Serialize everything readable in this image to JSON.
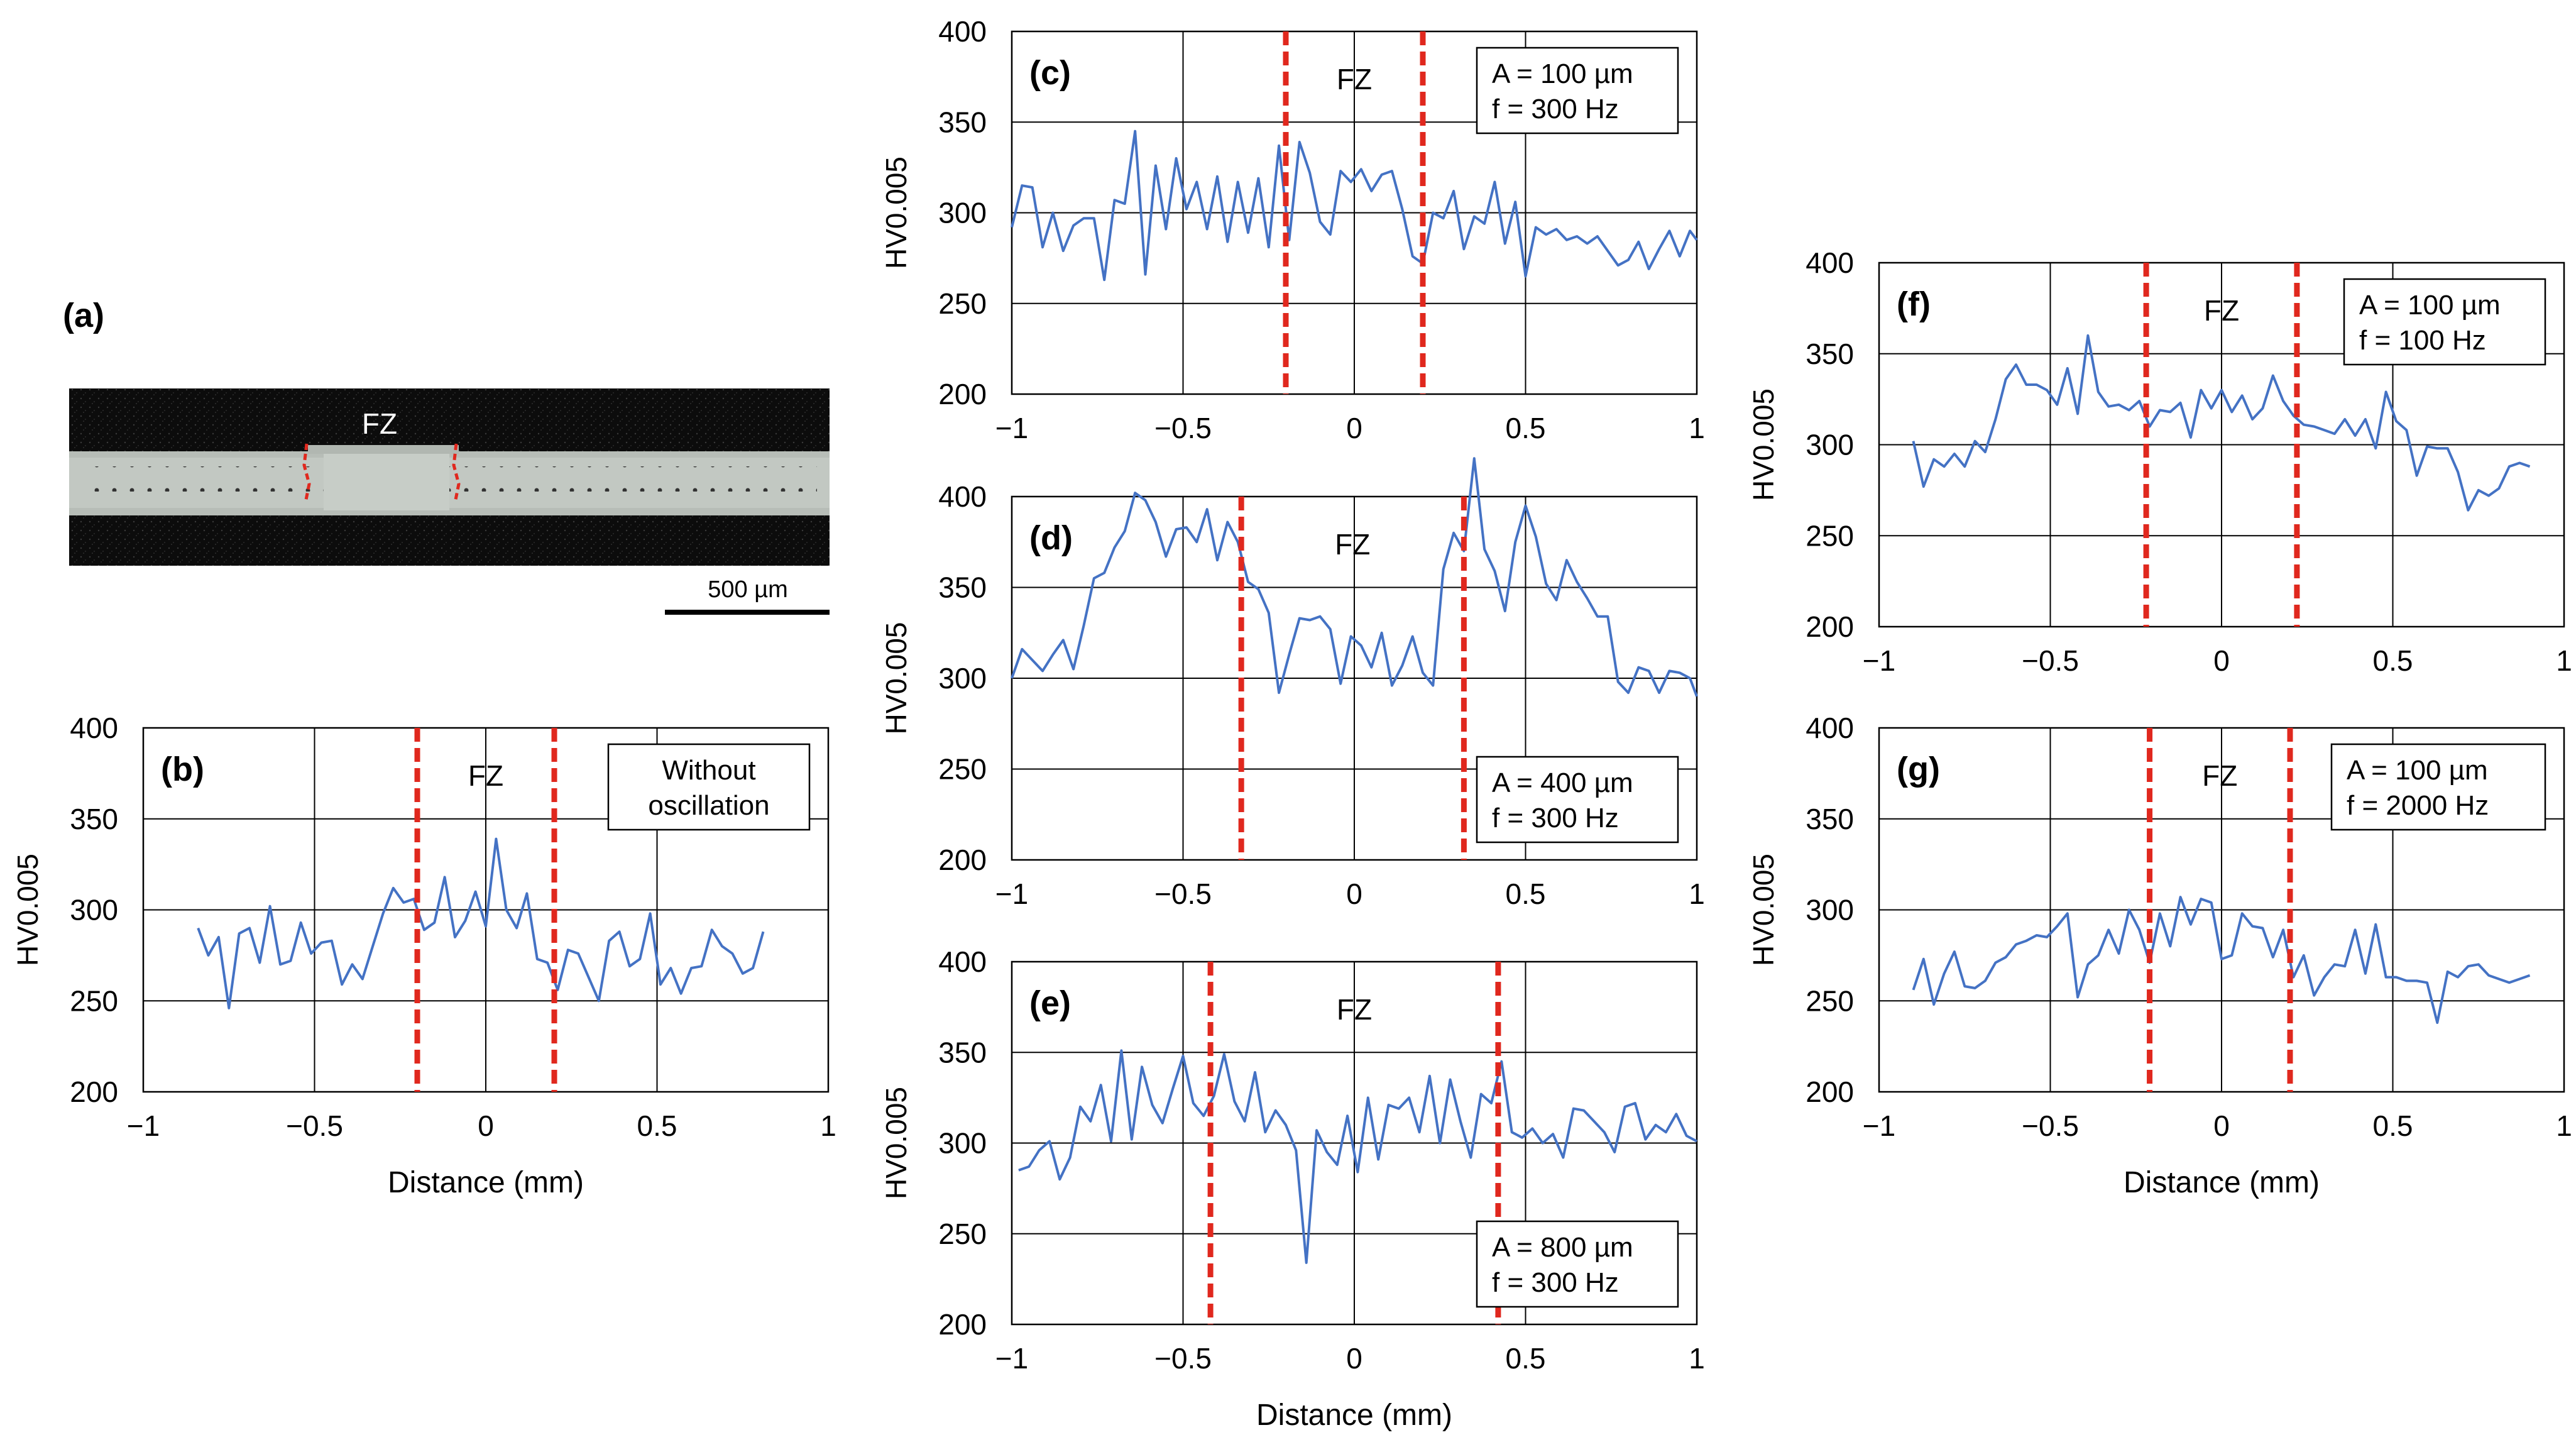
{
  "panel_a": {
    "label": "(a)",
    "fz_label": "FZ",
    "scale_bar_label": "500 µm"
  },
  "chart_data": [
    {
      "id": "b",
      "type": "line",
      "panel_label": "(b)",
      "zone_label": "FZ",
      "annotation": [
        "Without",
        "oscillation"
      ],
      "xlabel": "Distance (mm)",
      "ylabel": "HV0.005",
      "xlim": [
        -1,
        1
      ],
      "ylim": [
        200,
        400
      ],
      "xticks": [
        -1,
        -0.5,
        0,
        0.5,
        1
      ],
      "xtick_labels": [
        "−1",
        "−0.5",
        "0",
        "0.5",
        "1"
      ],
      "yticks": [
        200,
        250,
        300,
        350,
        400
      ],
      "fz_bounds": [
        -0.2,
        0.2
      ],
      "grid": true,
      "colors": {
        "series": "#4472c4",
        "fz": "#e0281e"
      },
      "x": [
        -0.84,
        -0.81,
        -0.78,
        -0.75,
        -0.72,
        -0.69,
        -0.66,
        -0.63,
        -0.6,
        -0.57,
        -0.54,
        -0.51,
        -0.48,
        -0.45,
        -0.42,
        -0.39,
        -0.36,
        -0.33,
        -0.3,
        -0.27,
        -0.24,
        -0.21,
        -0.18,
        -0.15,
        -0.12,
        -0.09,
        -0.06,
        -0.03,
        0.0,
        0.03,
        0.06,
        0.09,
        0.12,
        0.15,
        0.18,
        0.21,
        0.24,
        0.27,
        0.3,
        0.33,
        0.36,
        0.39,
        0.42,
        0.45,
        0.48,
        0.51,
        0.54,
        0.57,
        0.6,
        0.63,
        0.66,
        0.69,
        0.72,
        0.75,
        0.78,
        0.81
      ],
      "values": [
        290,
        275,
        285,
        246,
        287,
        290,
        271,
        302,
        270,
        272,
        293,
        276,
        282,
        283,
        259,
        270,
        262,
        280,
        298,
        312,
        304,
        306,
        289,
        293,
        318,
        285,
        294,
        310,
        291,
        339,
        300,
        290,
        309,
        273,
        271,
        256,
        278,
        276,
        263,
        250,
        283,
        288,
        269,
        273,
        298,
        259,
        268,
        254,
        268,
        269,
        289,
        280,
        276,
        265,
        268,
        288
      ]
    },
    {
      "id": "c",
      "type": "line",
      "panel_label": "(c)",
      "zone_label": "FZ",
      "annotation": [
        "A = 100 µm",
        "f = 300 Hz"
      ],
      "xlabel": "",
      "ylabel": "HV0.005",
      "xlim": [
        -1,
        1
      ],
      "ylim": [
        200,
        400
      ],
      "xticks": [
        -1,
        -0.5,
        0,
        0.5,
        1
      ],
      "xtick_labels": [
        "−1",
        "−0.5",
        "0",
        "0.5",
        "1"
      ],
      "yticks": [
        200,
        250,
        300,
        350,
        400
      ],
      "fz_bounds": [
        -0.2,
        0.2
      ],
      "grid": true,
      "colors": {
        "series": "#4472c4",
        "fz": "#e0281e"
      },
      "x": [
        -1.0,
        -0.97,
        -0.94,
        -0.91,
        -0.88,
        -0.85,
        -0.82,
        -0.79,
        -0.76,
        -0.73,
        -0.7,
        -0.67,
        -0.64,
        -0.61,
        -0.58,
        -0.55,
        -0.52,
        -0.49,
        -0.46,
        -0.43,
        -0.4,
        -0.37,
        -0.34,
        -0.31,
        -0.28,
        -0.25,
        -0.22,
        -0.19,
        -0.16,
        -0.13,
        -0.1,
        -0.07,
        -0.04,
        -0.01,
        0.02,
        0.05,
        0.08,
        0.11,
        0.14,
        0.17,
        0.2,
        0.23,
        0.26,
        0.29,
        0.32,
        0.35,
        0.38,
        0.41,
        0.44,
        0.47,
        0.5,
        0.53,
        0.56,
        0.59,
        0.62,
        0.65,
        0.68,
        0.71,
        0.74,
        0.77,
        0.8,
        0.83,
        0.86,
        0.89,
        0.92,
        0.95,
        0.98,
        1.0
      ],
      "values": [
        292,
        315,
        314,
        281,
        300,
        279,
        293,
        297,
        297,
        263,
        307,
        305,
        345,
        266,
        326,
        291,
        330,
        302,
        317,
        291,
        320,
        284,
        317,
        289,
        319,
        281,
        337,
        285,
        339,
        322,
        295,
        288,
        323,
        317,
        324,
        312,
        321,
        323,
        302,
        276,
        272,
        300,
        297,
        312,
        280,
        298,
        294,
        317,
        283,
        306,
        265,
        292,
        288,
        291,
        285,
        287,
        283,
        287,
        279,
        271,
        274,
        284,
        269,
        280,
        290,
        276,
        290,
        285
      ]
    },
    {
      "id": "d",
      "type": "line",
      "panel_label": "(d)",
      "zone_label": "FZ",
      "annotation": [
        "A = 400 µm",
        "f = 300 Hz"
      ],
      "xlabel": "",
      "ylabel": "HV0.005",
      "xlim": [
        -1,
        1
      ],
      "ylim": [
        200,
        400
      ],
      "xticks": [
        -1,
        -0.5,
        0,
        0.5,
        1
      ],
      "xtick_labels": [
        "−1",
        "−0.5",
        "0",
        "0.5",
        "1"
      ],
      "yticks": [
        200,
        250,
        300,
        350,
        400
      ],
      "fz_bounds": [
        -0.33,
        0.32
      ],
      "grid": true,
      "colors": {
        "series": "#4472c4",
        "fz": "#e0281e"
      },
      "x": [
        -1.0,
        -0.97,
        -0.94,
        -0.91,
        -0.88,
        -0.85,
        -0.82,
        -0.79,
        -0.76,
        -0.73,
        -0.7,
        -0.67,
        -0.64,
        -0.61,
        -0.58,
        -0.55,
        -0.52,
        -0.49,
        -0.46,
        -0.43,
        -0.4,
        -0.37,
        -0.34,
        -0.31,
        -0.28,
        -0.25,
        -0.22,
        -0.19,
        -0.16,
        -0.13,
        -0.1,
        -0.07,
        -0.04,
        -0.01,
        0.02,
        0.05,
        0.08,
        0.11,
        0.14,
        0.17,
        0.2,
        0.23,
        0.26,
        0.29,
        0.32,
        0.35,
        0.38,
        0.41,
        0.44,
        0.47,
        0.5,
        0.53,
        0.56,
        0.59,
        0.62,
        0.65,
        0.68,
        0.71,
        0.74,
        0.77,
        0.8,
        0.83,
        0.86,
        0.89,
        0.92,
        0.95,
        0.98,
        1.0
      ],
      "values": [
        300,
        316,
        310,
        304,
        313,
        321,
        305,
        329,
        355,
        358,
        372,
        381,
        402,
        398,
        386,
        367,
        382,
        383,
        375,
        393,
        365,
        386,
        375,
        353,
        349,
        336,
        292,
        313,
        333,
        332,
        334,
        327,
        297,
        323,
        318,
        306,
        325,
        296,
        307,
        323,
        303,
        296,
        360,
        380,
        370,
        421,
        371,
        359,
        337,
        375,
        395,
        378,
        352,
        343,
        365,
        353,
        344,
        334,
        334,
        298,
        292,
        306,
        304,
        292,
        304,
        303,
        300,
        290
      ]
    },
    {
      "id": "e",
      "type": "line",
      "panel_label": "(e)",
      "zone_label": "FZ",
      "annotation": [
        "A = 800 µm",
        "f = 300 Hz"
      ],
      "xlabel": "Distance (mm)",
      "ylabel": "HV0.005",
      "xlim": [
        -1,
        1
      ],
      "ylim": [
        200,
        400
      ],
      "xticks": [
        -1,
        -0.5,
        0,
        0.5,
        1
      ],
      "xtick_labels": [
        "−1",
        "−0.5",
        "0",
        "0.5",
        "1"
      ],
      "yticks": [
        200,
        250,
        300,
        350,
        400
      ],
      "fz_bounds": [
        -0.42,
        0.42
      ],
      "grid": true,
      "colors": {
        "series": "#4472c4",
        "fz": "#e0281e"
      },
      "x": [
        -0.98,
        -0.95,
        -0.92,
        -0.89,
        -0.86,
        -0.83,
        -0.8,
        -0.77,
        -0.74,
        -0.71,
        -0.68,
        -0.65,
        -0.62,
        -0.59,
        -0.56,
        -0.53,
        -0.5,
        -0.47,
        -0.44,
        -0.41,
        -0.38,
        -0.35,
        -0.32,
        -0.29,
        -0.26,
        -0.23,
        -0.2,
        -0.17,
        -0.14,
        -0.11,
        -0.08,
        -0.05,
        -0.02,
        0.01,
        0.04,
        0.07,
        0.1,
        0.13,
        0.16,
        0.19,
        0.22,
        0.25,
        0.28,
        0.31,
        0.34,
        0.37,
        0.4,
        0.43,
        0.46,
        0.49,
        0.52,
        0.55,
        0.58,
        0.61,
        0.64,
        0.67,
        0.7,
        0.73,
        0.76,
        0.79,
        0.82,
        0.85,
        0.88,
        0.91,
        0.94,
        0.97,
        1.0
      ],
      "values": [
        285,
        287,
        296,
        301,
        280,
        292,
        320,
        312,
        332,
        301,
        351,
        302,
        342,
        321,
        311,
        330,
        348,
        322,
        315,
        326,
        349,
        323,
        312,
        339,
        306,
        318,
        310,
        296,
        234,
        307,
        295,
        288,
        315,
        284,
        325,
        291,
        321,
        319,
        325,
        306,
        337,
        300,
        335,
        312,
        292,
        327,
        322,
        345,
        306,
        303,
        308,
        300,
        305,
        292,
        319,
        318,
        312,
        306,
        295,
        320,
        322,
        302,
        310,
        306,
        316,
        304,
        301
      ]
    },
    {
      "id": "f",
      "type": "line",
      "panel_label": "(f)",
      "zone_label": "FZ",
      "annotation": [
        "A = 100 µm",
        "f = 100 Hz"
      ],
      "xlabel": "",
      "ylabel": "HV0.005",
      "xlim": [
        -1,
        1
      ],
      "ylim": [
        200,
        400
      ],
      "xticks": [
        -1,
        -0.5,
        0,
        0.5,
        1
      ],
      "xtick_labels": [
        "−1",
        "−0.5",
        "0",
        "0.5",
        "1"
      ],
      "yticks": [
        200,
        250,
        300,
        350,
        400
      ],
      "fz_bounds": [
        -0.22,
        0.22
      ],
      "grid": true,
      "colors": {
        "series": "#4472c4",
        "fz": "#e0281e"
      },
      "x": [
        -0.9,
        -0.87,
        -0.84,
        -0.81,
        -0.78,
        -0.75,
        -0.72,
        -0.69,
        -0.66,
        -0.63,
        -0.6,
        -0.57,
        -0.54,
        -0.51,
        -0.48,
        -0.45,
        -0.42,
        -0.39,
        -0.36,
        -0.33,
        -0.3,
        -0.27,
        -0.24,
        -0.21,
        -0.18,
        -0.15,
        -0.12,
        -0.09,
        -0.06,
        -0.03,
        0.0,
        0.03,
        0.06,
        0.09,
        0.12,
        0.15,
        0.18,
        0.21,
        0.24,
        0.27,
        0.3,
        0.33,
        0.36,
        0.39,
        0.42,
        0.45,
        0.48,
        0.51,
        0.54,
        0.57,
        0.6,
        0.63,
        0.66,
        0.69,
        0.72,
        0.75,
        0.78,
        0.81,
        0.84,
        0.87,
        0.9
      ],
      "values": [
        302,
        277,
        292,
        288,
        295,
        288,
        302,
        296,
        314,
        336,
        344,
        333,
        333,
        330,
        322,
        342,
        317,
        360,
        329,
        321,
        322,
        319,
        324,
        310,
        319,
        318,
        323,
        304,
        330,
        320,
        330,
        318,
        327,
        314,
        320,
        338,
        324,
        316,
        311,
        310,
        308,
        306,
        314,
        305,
        314,
        298,
        329,
        313,
        308,
        283,
        299,
        298,
        298,
        285,
        264,
        275,
        272,
        276,
        288,
        290,
        288
      ]
    },
    {
      "id": "g",
      "type": "line",
      "panel_label": "(g)",
      "zone_label": "FZ",
      "annotation": [
        "A = 100 µm",
        "f = 2000 Hz"
      ],
      "xlabel": "Distance (mm)",
      "ylabel": "HV0.005",
      "xlim": [
        -1,
        1
      ],
      "ylim": [
        200,
        400
      ],
      "xticks": [
        -1,
        -0.5,
        0,
        0.5,
        1
      ],
      "xtick_labels": [
        "−1",
        "−0.5",
        "0",
        "0.5",
        "1"
      ],
      "yticks": [
        200,
        250,
        300,
        350,
        400
      ],
      "fz_bounds": [
        -0.21,
        0.2
      ],
      "grid": true,
      "colors": {
        "series": "#4472c4",
        "fz": "#e0281e"
      },
      "x": [
        -0.9,
        -0.87,
        -0.84,
        -0.81,
        -0.78,
        -0.75,
        -0.72,
        -0.69,
        -0.66,
        -0.63,
        -0.6,
        -0.57,
        -0.54,
        -0.51,
        -0.48,
        -0.45,
        -0.42,
        -0.39,
        -0.36,
        -0.33,
        -0.3,
        -0.27,
        -0.24,
        -0.21,
        -0.18,
        -0.15,
        -0.12,
        -0.09,
        -0.06,
        -0.03,
        0.0,
        0.03,
        0.06,
        0.09,
        0.12,
        0.15,
        0.18,
        0.21,
        0.24,
        0.27,
        0.3,
        0.33,
        0.36,
        0.39,
        0.42,
        0.45,
        0.48,
        0.51,
        0.54,
        0.57,
        0.6,
        0.63,
        0.66,
        0.69,
        0.72,
        0.75,
        0.78,
        0.81,
        0.84,
        0.87,
        0.9
      ],
      "values": [
        256,
        273,
        248,
        265,
        277,
        258,
        257,
        261,
        271,
        274,
        281,
        283,
        286,
        285,
        291,
        298,
        252,
        270,
        275,
        289,
        276,
        300,
        289,
        271,
        298,
        280,
        307,
        292,
        306,
        304,
        273,
        275,
        298,
        291,
        290,
        274,
        289,
        263,
        275,
        253,
        263,
        270,
        269,
        289,
        265,
        292,
        263,
        263,
        261,
        261,
        260,
        238,
        266,
        263,
        269,
        270,
        264,
        262,
        260,
        262,
        264
      ]
    }
  ]
}
